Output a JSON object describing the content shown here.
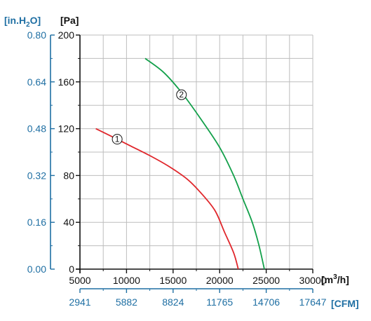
{
  "colors": {
    "pa_axis": "#111111",
    "inh2o_axis": "#1f6fa3",
    "cfm_axis": "#1f6fa3",
    "grid": "#bdbdbd",
    "series_1": "#e0262b",
    "series_2": "#12a04a"
  },
  "labels": {
    "y_left_unit": "[in.H",
    "y_left_unit_sub": "2",
    "y_left_unit_end": "O]",
    "y_unit": "[Pa]",
    "x_unit": "[m",
    "x_unit_sup": "3",
    "x_unit_end": "/h]",
    "x2_unit": "[CFM]"
  },
  "chart_data": {
    "type": "line",
    "xlim": [
      5000,
      30000
    ],
    "ylim": [
      0,
      200
    ],
    "grid": true,
    "x_ticks": [
      5000,
      10000,
      15000,
      20000,
      25000,
      30000
    ],
    "x_tick_labels": [
      "5000",
      "10000",
      "15000",
      "20000",
      "25000",
      "30000"
    ],
    "y_ticks": [
      0,
      40,
      80,
      120,
      160,
      200
    ],
    "y_tick_labels": [
      "0",
      "40",
      "80",
      "120",
      "160",
      "200"
    ],
    "y2_ticks": [
      0,
      0.16,
      0.32,
      0.48,
      0.64,
      0.8
    ],
    "y2_tick_labels": [
      "0.00",
      "0.16",
      "0.32",
      "0.48",
      "0.64",
      "0.80"
    ],
    "x2_ticks": [
      2941,
      5882,
      8824,
      11765,
      14706,
      17647
    ],
    "x2_tick_labels": [
      "2941",
      "5882",
      "8824",
      "11765",
      "14706",
      "17647"
    ],
    "series": [
      {
        "name": "①",
        "color": "#e0262b",
        "points": [
          [
            6700,
            120
          ],
          [
            8500,
            113
          ],
          [
            10500,
            105
          ],
          [
            12500,
            97
          ],
          [
            14500,
            88
          ],
          [
            16500,
            77
          ],
          [
            18000,
            65
          ],
          [
            19500,
            50
          ],
          [
            20500,
            32
          ],
          [
            21500,
            14
          ],
          [
            22000,
            0
          ]
        ],
        "label_at": [
          9000,
          111
        ]
      },
      {
        "name": "②",
        "color": "#12a04a",
        "points": [
          [
            12000,
            180
          ],
          [
            14000,
            168
          ],
          [
            16000,
            150
          ],
          [
            18000,
            128
          ],
          [
            20000,
            104
          ],
          [
            21500,
            80
          ],
          [
            22500,
            60
          ],
          [
            23500,
            40
          ],
          [
            24200,
            21
          ],
          [
            24800,
            0
          ]
        ],
        "label_at": [
          15900,
          149
        ]
      }
    ]
  }
}
